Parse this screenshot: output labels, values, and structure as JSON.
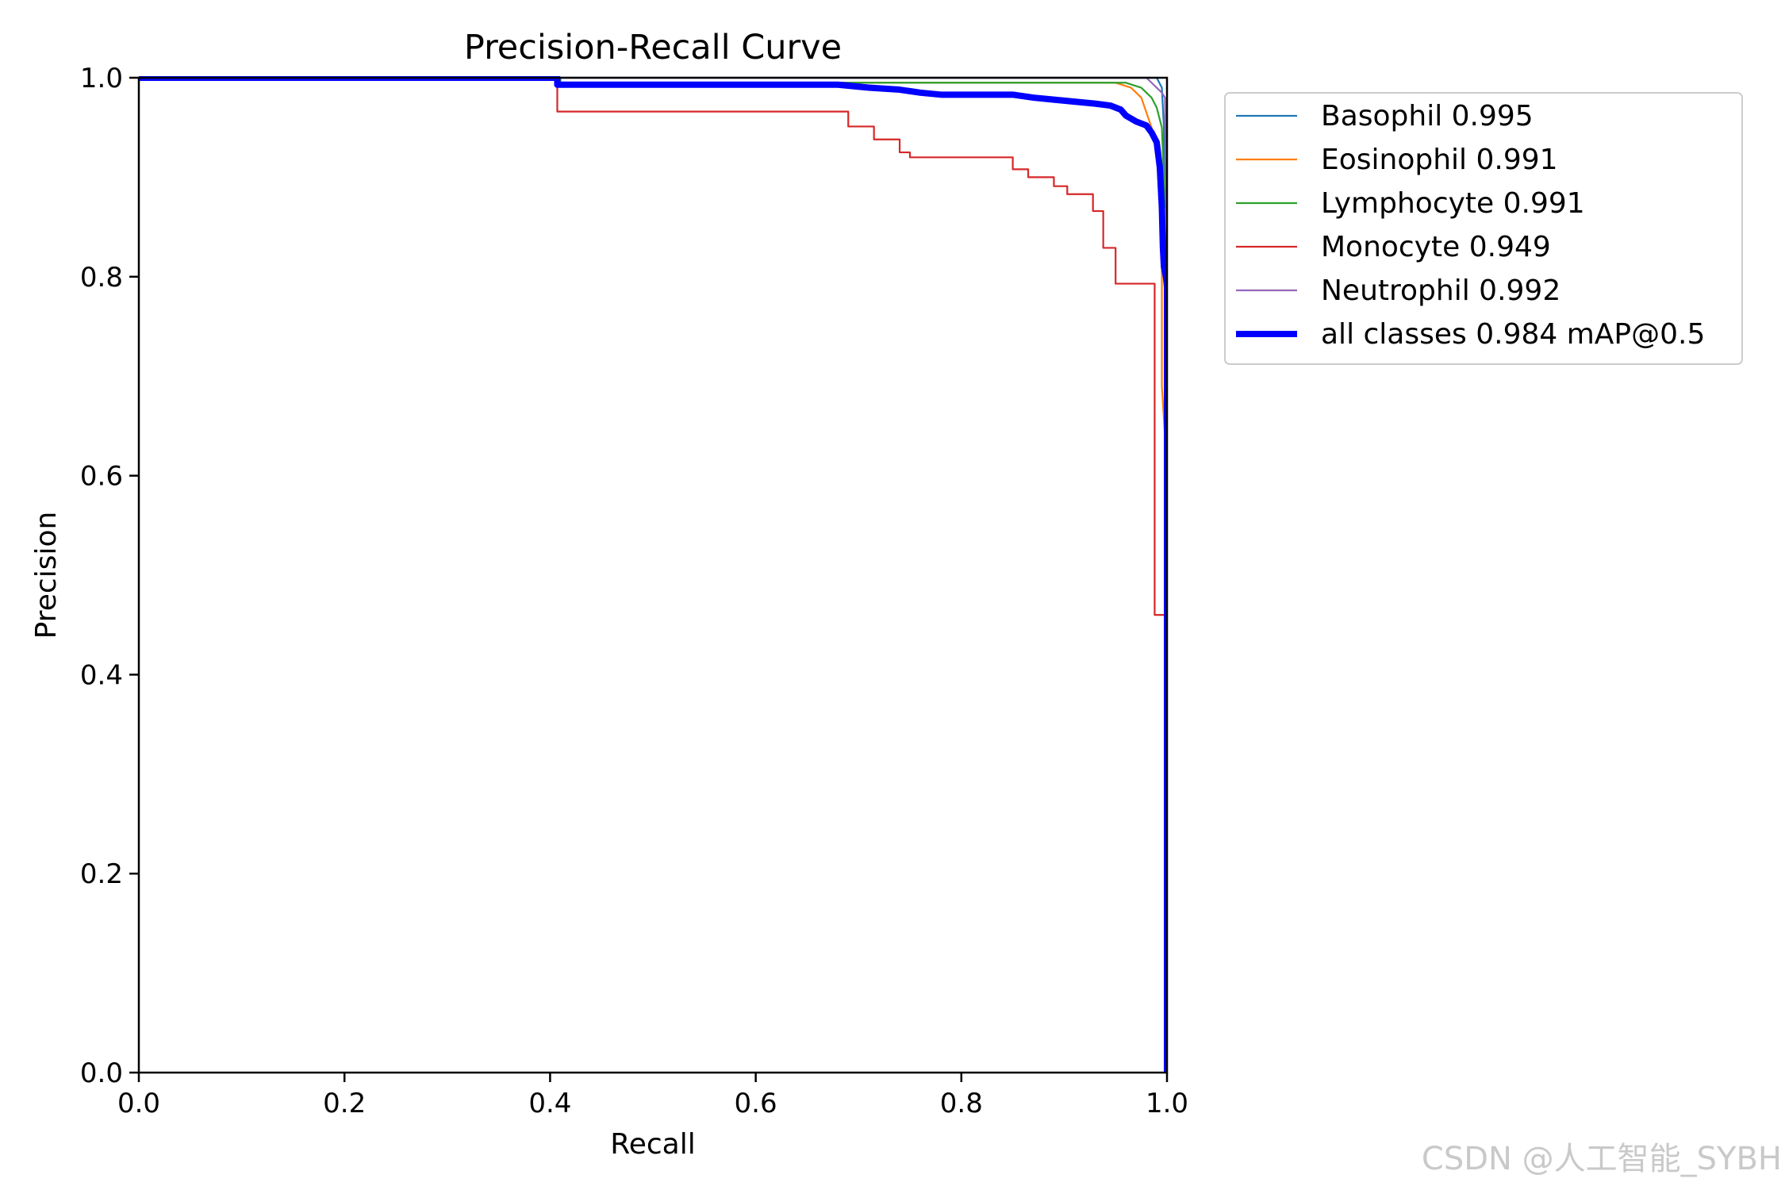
{
  "watermark": "CSDN @人工智能_SYBH",
  "chart_data": {
    "type": "line",
    "title": "Precision-Recall Curve",
    "xlabel": "Recall",
    "ylabel": "Precision",
    "xlim": [
      0,
      1
    ],
    "ylim": [
      0,
      1
    ],
    "xticks": [
      0.0,
      0.2,
      0.4,
      0.6,
      0.8,
      1.0
    ],
    "yticks": [
      0.0,
      0.2,
      0.4,
      0.6,
      0.8,
      1.0
    ],
    "xtick_labels": [
      "0.0",
      "0.2",
      "0.4",
      "0.6",
      "0.8",
      "1.0"
    ],
    "ytick_labels": [
      "0.0",
      "0.2",
      "0.4",
      "0.6",
      "0.8",
      "1.0"
    ],
    "grid": false,
    "legend_placement": "outside-upper-right",
    "series": [
      {
        "name": "Basophil 0.995",
        "color": "#1f77b4",
        "points": [
          [
            0,
            1.0
          ],
          [
            0.93,
            1.0
          ],
          [
            0.99,
            1.0
          ],
          [
            0.995,
            0.99
          ],
          [
            0.997,
            0.95
          ],
          [
            0.999,
            0.5
          ],
          [
            1.0,
            0.0
          ]
        ]
      },
      {
        "name": "Eosinophil 0.991",
        "color": "#ff7f0e",
        "points": [
          [
            0,
            1.0
          ],
          [
            0.41,
            1.0
          ],
          [
            0.41,
            0.995
          ],
          [
            0.95,
            0.995
          ],
          [
            0.965,
            0.99
          ],
          [
            0.975,
            0.98
          ],
          [
            0.98,
            0.965
          ],
          [
            0.985,
            0.95
          ],
          [
            0.99,
            0.93
          ],
          [
            0.992,
            0.92
          ],
          [
            0.995,
            0.89
          ],
          [
            0.995,
            0.69
          ],
          [
            0.998,
            0.64
          ],
          [
            0.999,
            0.3
          ],
          [
            1.0,
            0.0
          ]
        ]
      },
      {
        "name": "Lymphocyte 0.991",
        "color": "#2ca02c",
        "points": [
          [
            0,
            1.0
          ],
          [
            0.41,
            1.0
          ],
          [
            0.41,
            0.995
          ],
          [
            0.96,
            0.995
          ],
          [
            0.975,
            0.99
          ],
          [
            0.985,
            0.98
          ],
          [
            0.99,
            0.97
          ],
          [
            0.995,
            0.95
          ],
          [
            0.997,
            0.9
          ],
          [
            0.998,
            0.88
          ],
          [
            0.999,
            0.87
          ],
          [
            1.0,
            0.86
          ],
          [
            1.0,
            0.0
          ]
        ]
      },
      {
        "name": "Monocyte 0.949",
        "color": "#d62728",
        "points": [
          [
            0,
            1.0
          ],
          [
            0.407,
            1.0
          ],
          [
            0.407,
            0.966
          ],
          [
            0.69,
            0.966
          ],
          [
            0.69,
            0.951
          ],
          [
            0.715,
            0.951
          ],
          [
            0.715,
            0.938
          ],
          [
            0.74,
            0.938
          ],
          [
            0.74,
            0.925
          ],
          [
            0.75,
            0.925
          ],
          [
            0.75,
            0.92
          ],
          [
            0.85,
            0.92
          ],
          [
            0.85,
            0.908
          ],
          [
            0.865,
            0.908
          ],
          [
            0.865,
            0.9
          ],
          [
            0.89,
            0.9
          ],
          [
            0.89,
            0.891
          ],
          [
            0.903,
            0.891
          ],
          [
            0.903,
            0.883
          ],
          [
            0.928,
            0.883
          ],
          [
            0.928,
            0.866
          ],
          [
            0.938,
            0.866
          ],
          [
            0.938,
            0.829
          ],
          [
            0.95,
            0.829
          ],
          [
            0.95,
            0.793
          ],
          [
            0.988,
            0.793
          ],
          [
            0.988,
            0.46
          ],
          [
            0.998,
            0.46
          ],
          [
            0.998,
            0.0
          ]
        ]
      },
      {
        "name": "Neutrophil 0.992",
        "color": "#9467bd",
        "points": [
          [
            0,
            1.0
          ],
          [
            0.98,
            1.0
          ],
          [
            0.985,
            0.995
          ],
          [
            0.99,
            0.99
          ],
          [
            0.995,
            0.985
          ],
          [
            0.998,
            0.98
          ],
          [
            0.999,
            0.9
          ],
          [
            1.0,
            0.8
          ],
          [
            1.0,
            0.0
          ]
        ]
      },
      {
        "name": "all classes 0.984 mAP@0.5",
        "color": "#0000ff",
        "thick": true,
        "points": [
          [
            0,
            1.0
          ],
          [
            0.407,
            1.0
          ],
          [
            0.407,
            0.993
          ],
          [
            0.68,
            0.993
          ],
          [
            0.71,
            0.99
          ],
          [
            0.74,
            0.988
          ],
          [
            0.76,
            0.985
          ],
          [
            0.78,
            0.983
          ],
          [
            0.85,
            0.983
          ],
          [
            0.87,
            0.98
          ],
          [
            0.89,
            0.978
          ],
          [
            0.91,
            0.976
          ],
          [
            0.93,
            0.974
          ],
          [
            0.945,
            0.972
          ],
          [
            0.955,
            0.968
          ],
          [
            0.96,
            0.962
          ],
          [
            0.97,
            0.956
          ],
          [
            0.98,
            0.952
          ],
          [
            0.985,
            0.945
          ],
          [
            0.99,
            0.935
          ],
          [
            0.993,
            0.91
          ],
          [
            0.995,
            0.87
          ],
          [
            0.996,
            0.83
          ],
          [
            0.997,
            0.81
          ],
          [
            0.999,
            0.8
          ],
          [
            1.0,
            0.79
          ],
          [
            1.0,
            0.0
          ]
        ]
      }
    ]
  }
}
